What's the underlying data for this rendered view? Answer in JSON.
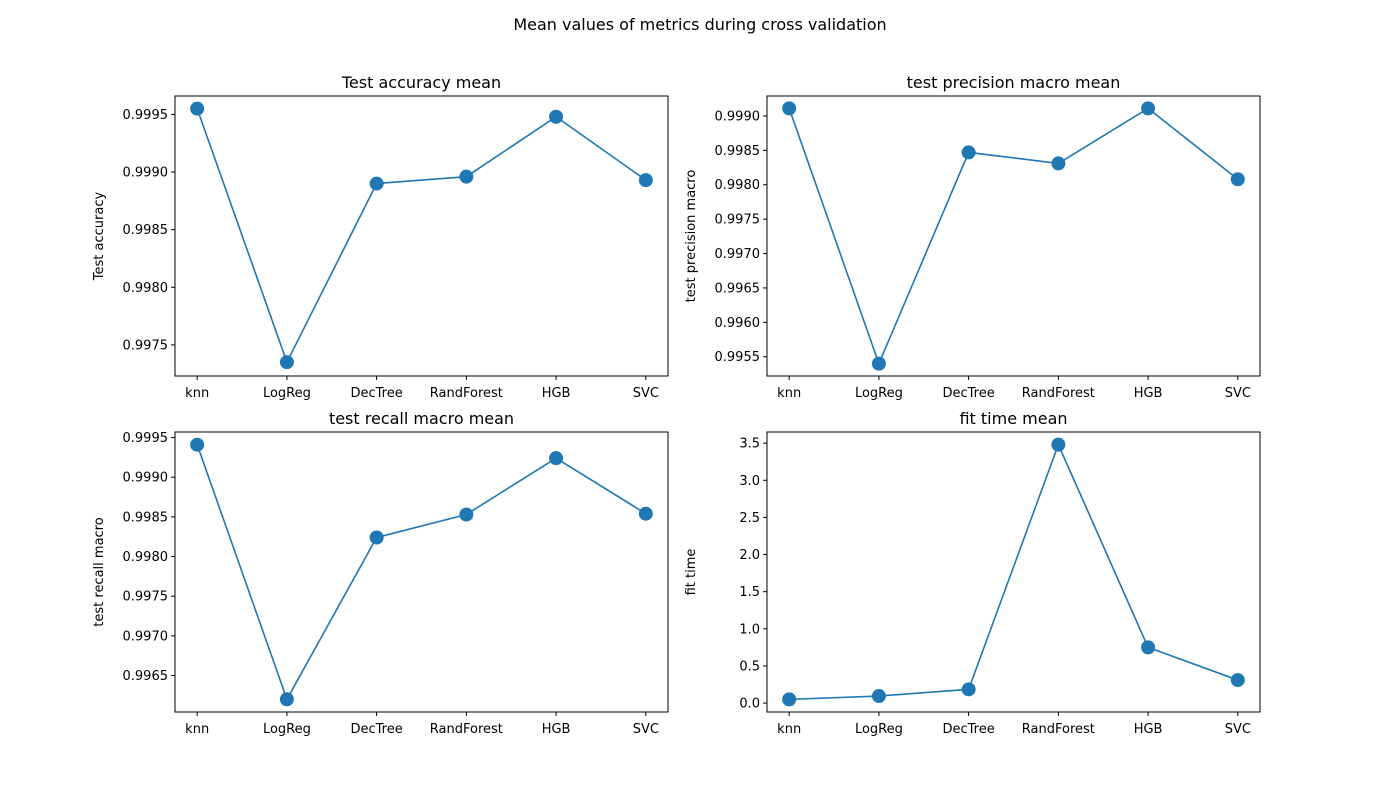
{
  "figure": {
    "suptitle": "Mean values of metrics during cross validation"
  },
  "chart_data": [
    {
      "type": "line",
      "title": "Test accuracy mean",
      "xlabel": "",
      "ylabel": "Test accuracy",
      "categories": [
        "knn",
        "LogReg",
        "DecTree",
        "RandForest",
        "HGB",
        "SVC"
      ],
      "values": [
        0.99955,
        0.99735,
        0.9989,
        0.99896,
        0.99948,
        0.99893
      ],
      "ylim": [
        0.99723,
        0.99966
      ],
      "yticks": [
        0.9975,
        0.998,
        0.9985,
        0.999,
        0.9995
      ],
      "ytick_labels": [
        "0.9975",
        "0.9980",
        "0.9985",
        "0.9990",
        "0.9995"
      ],
      "grid": false,
      "marker": "circle",
      "color": "#1f77b4"
    },
    {
      "type": "line",
      "title": "test precision macro mean",
      "xlabel": "",
      "ylabel": "test precision macro",
      "categories": [
        "knn",
        "LogReg",
        "DecTree",
        "RandForest",
        "HGB",
        "SVC"
      ],
      "values": [
        0.99911,
        0.9954,
        0.99847,
        0.99831,
        0.99911,
        0.99808
      ],
      "ylim": [
        0.99522,
        0.99929
      ],
      "yticks": [
        0.9955,
        0.996,
        0.9965,
        0.997,
        0.9975,
        0.998,
        0.9985,
        0.999
      ],
      "ytick_labels": [
        "0.9955",
        "0.9960",
        "0.9965",
        "0.9970",
        "0.9975",
        "0.9980",
        "0.9985",
        "0.9990"
      ],
      "grid": false,
      "marker": "circle",
      "color": "#1f77b4"
    },
    {
      "type": "line",
      "title": "test recall macro mean",
      "xlabel": "",
      "ylabel": "test recall macro",
      "categories": [
        "knn",
        "LogReg",
        "DecTree",
        "RandForest",
        "HGB",
        "SVC"
      ],
      "values": [
        0.99941,
        0.9962,
        0.99824,
        0.99853,
        0.99924,
        0.99854
      ],
      "ylim": [
        0.99604,
        0.99957
      ],
      "yticks": [
        0.9965,
        0.997,
        0.9975,
        0.998,
        0.9985,
        0.999,
        0.9995
      ],
      "ytick_labels": [
        "0.9965",
        "0.9970",
        "0.9975",
        "0.9980",
        "0.9985",
        "0.9990",
        "0.9995"
      ],
      "grid": false,
      "marker": "circle",
      "color": "#1f77b4"
    },
    {
      "type": "line",
      "title": "fit time mean",
      "xlabel": "",
      "ylabel": "fit time",
      "categories": [
        "knn",
        "LogReg",
        "DecTree",
        "RandForest",
        "HGB",
        "SVC"
      ],
      "values": [
        0.05,
        0.095,
        0.185,
        3.48,
        0.75,
        0.31
      ],
      "ylim": [
        -0.12,
        3.65
      ],
      "yticks": [
        0.0,
        0.5,
        1.0,
        1.5,
        2.0,
        2.5,
        3.0,
        3.5
      ],
      "ytick_labels": [
        "0.0",
        "0.5",
        "1.0",
        "1.5",
        "2.0",
        "2.5",
        "3.0",
        "3.5"
      ],
      "grid": false,
      "marker": "circle",
      "color": "#1f77b4"
    }
  ]
}
